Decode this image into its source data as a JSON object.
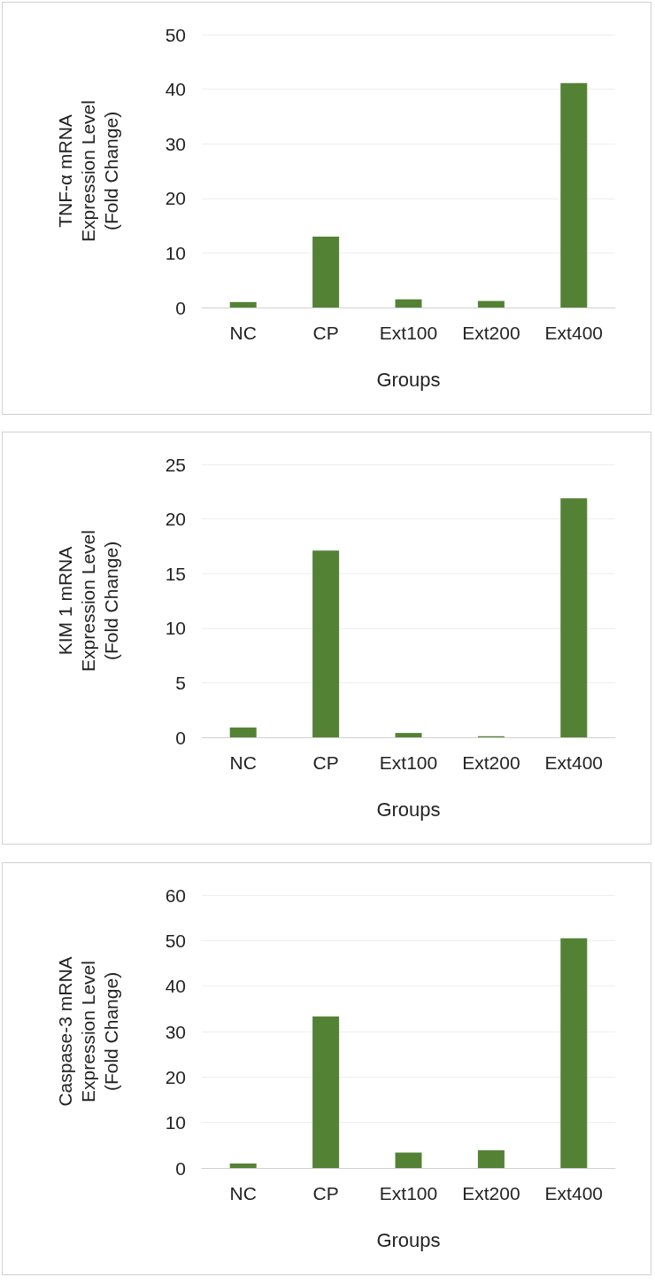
{
  "chart_data": [
    {
      "type": "bar",
      "ylabel": "TNF-α mRNA\nExpression Level\n(Fold Change)",
      "xlabel": "Groups",
      "categories": [
        "NC",
        "CP",
        "Ext100",
        "Ext200",
        "Ext400"
      ],
      "values": [
        1.0,
        13.0,
        1.5,
        1.2,
        41.1
      ],
      "color": "#548235",
      "ylim": [
        0,
        50
      ],
      "yticks": [
        0,
        10,
        20,
        30,
        40,
        50
      ],
      "grid": "y"
    },
    {
      "type": "bar",
      "ylabel": "KIM 1 mRNA\nExpression Level\n(Fold Change)",
      "xlabel": "Groups",
      "categories": [
        "NC",
        "CP",
        "Ext100",
        "Ext200",
        "Ext400"
      ],
      "values": [
        0.9,
        17.1,
        0.4,
        0.1,
        21.9
      ],
      "color": "#548235",
      "ylim": [
        0,
        25
      ],
      "yticks": [
        0,
        5,
        10,
        15,
        20,
        25
      ],
      "grid": "y"
    },
    {
      "type": "bar",
      "ylabel": "Caspase-3 mRNA\nExpression Level\n(Fold Change)",
      "xlabel": "Groups",
      "categories": [
        "NC",
        "CP",
        "Ext100",
        "Ext200",
        "Ext400"
      ],
      "values": [
        1.0,
        33.3,
        3.4,
        3.9,
        50.5
      ],
      "color": "#548235",
      "ylim": [
        0,
        60
      ],
      "yticks": [
        0,
        10,
        20,
        30,
        40,
        50,
        60
      ],
      "grid": "y"
    }
  ]
}
